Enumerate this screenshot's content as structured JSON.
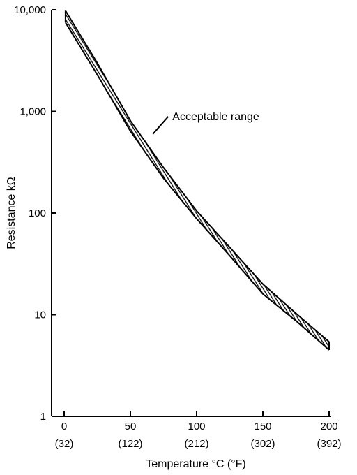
{
  "chart_data": {
    "type": "area",
    "xlabel": "Temperature °C (°F)",
    "ylabel": "Resistance kΩ",
    "x_ticks": [
      {
        "value": 0,
        "label": "0",
        "sublabel": "(32)"
      },
      {
        "value": 50,
        "label": "50",
        "sublabel": "(122)"
      },
      {
        "value": 100,
        "label": "100",
        "sublabel": "(212)"
      },
      {
        "value": 150,
        "label": "150",
        "sublabel": "(302)"
      },
      {
        "value": 200,
        "label": "200",
        "sublabel": "(392)"
      }
    ],
    "y_ticks": [
      {
        "value": 1,
        "label": "1"
      },
      {
        "value": 10,
        "label": "10"
      },
      {
        "value": 100,
        "label": "100"
      },
      {
        "value": 1000,
        "label": "1,000"
      },
      {
        "value": 10000,
        "label": "10,000"
      }
    ],
    "xlim": [
      -10,
      200
    ],
    "ylim": [
      1,
      10000
    ],
    "y_scale": "log",
    "grid": false,
    "series": [
      {
        "name": "Acceptable range",
        "x": [
          1,
          25,
          50,
          75,
          100,
          125,
          150,
          175,
          200
        ],
        "y_lower": [
          7500,
          2300,
          640,
          220,
          88,
          38,
          16,
          8.7,
          4.5
        ],
        "y_upper": [
          9800,
          3000,
          810,
          280,
          105,
          46,
          20,
          10.3,
          5.4
        ]
      }
    ],
    "annotations": [
      {
        "text": "Acceptable range",
        "x": 67,
        "y": 600
      }
    ]
  }
}
